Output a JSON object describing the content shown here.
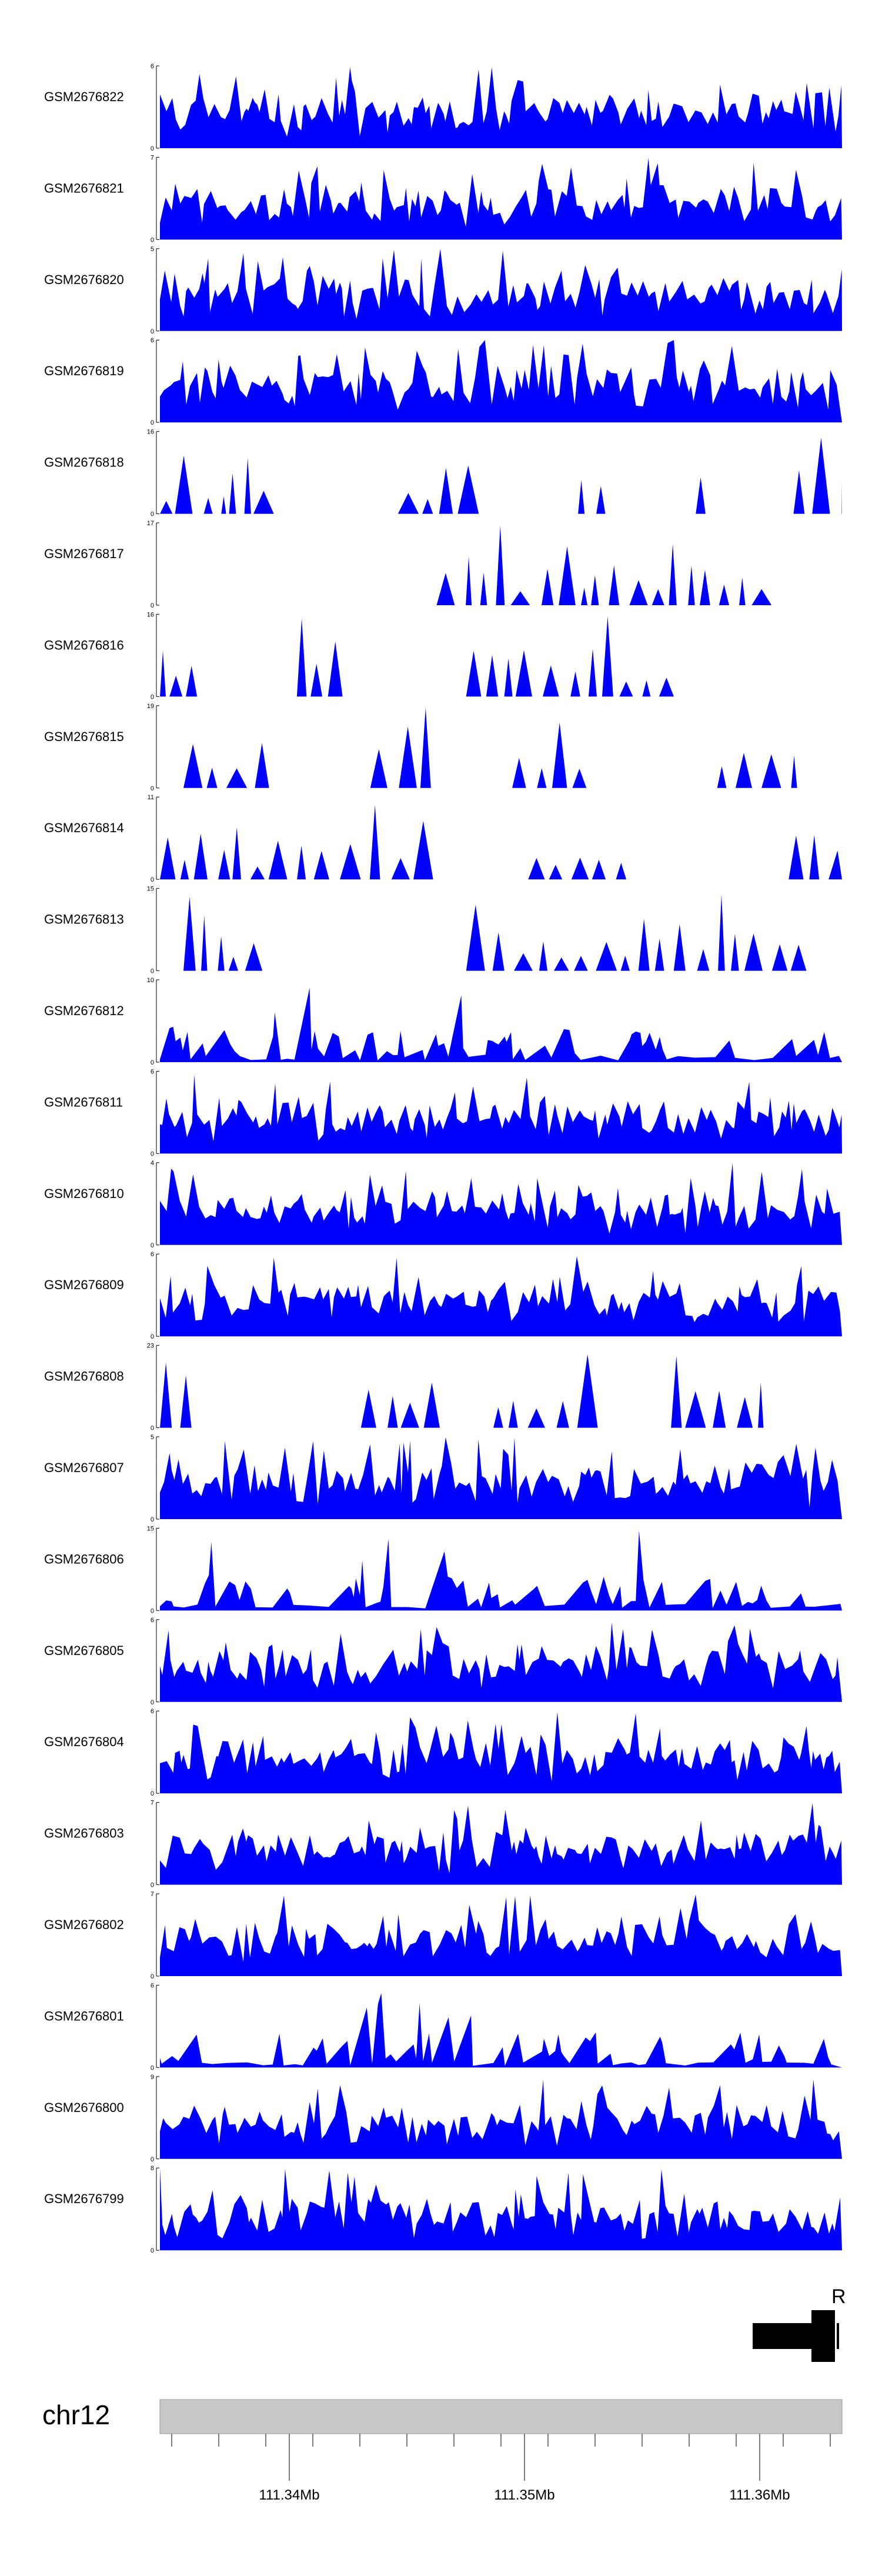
{
  "chart_data": {
    "type": "area",
    "title": "",
    "chromosome": "chr12",
    "x_range_mb": [
      111.3345,
      111.3635
    ],
    "x_axis_ticks": [
      {
        "value": 111.34,
        "label": "111.34Mb"
      },
      {
        "value": 111.35,
        "label": "111.35Mb"
      },
      {
        "value": 111.36,
        "label": "111.36Mb"
      }
    ],
    "fill_color": "#0000ff",
    "tracks": [
      {
        "name": "GSM2676822",
        "ymax": 6,
        "ymax_label": "6",
        "ymin_label": "0",
        "profile": "dense",
        "seed": 11
      },
      {
        "name": "GSM2676821",
        "ymax": 7,
        "ymax_label": "7",
        "ymin_label": "0",
        "profile": "dense",
        "seed": 12
      },
      {
        "name": "GSM2676820",
        "ymax": 5,
        "ymax_label": "5",
        "ymin_label": "0",
        "profile": "dense",
        "seed": 13
      },
      {
        "name": "GSM2676819",
        "ymax": 6,
        "ymax_label": "6",
        "ymin_label": "0",
        "profile": "dense",
        "seed": 14
      },
      {
        "name": "GSM2676818",
        "ymax": 16,
        "ymax_label": "16",
        "ymin_label": "0",
        "profile": "sparse",
        "seed": 15
      },
      {
        "name": "GSM2676817",
        "ymax": 17,
        "ymax_label": "17",
        "ymin_label": "0",
        "profile": "sparse",
        "seed": 16
      },
      {
        "name": "GSM2676816",
        "ymax": 16,
        "ymax_label": "16",
        "ymin_label": "0",
        "profile": "sparse",
        "seed": 17
      },
      {
        "name": "GSM2676815",
        "ymax": 19,
        "ymax_label": "19",
        "ymin_label": "0",
        "profile": "verysparse",
        "seed": 18
      },
      {
        "name": "GSM2676814",
        "ymax": 11,
        "ymax_label": "11",
        "ymin_label": "0",
        "profile": "sparse",
        "seed": 19
      },
      {
        "name": "GSM2676813",
        "ymax": 15,
        "ymax_label": "15",
        "ymin_label": "0",
        "profile": "verysparse",
        "seed": 20
      },
      {
        "name": "GSM2676812",
        "ymax": 10,
        "ymax_label": "10",
        "ymin_label": "0",
        "profile": "medium",
        "seed": 21
      },
      {
        "name": "GSM2676811",
        "ymax": 6,
        "ymax_label": "6",
        "ymin_label": "0",
        "profile": "dense",
        "seed": 22
      },
      {
        "name": "GSM2676810",
        "ymax": 4,
        "ymax_label": "4",
        "ymin_label": "0",
        "profile": "dense",
        "seed": 23
      },
      {
        "name": "GSM2676809",
        "ymax": 6,
        "ymax_label": "6",
        "ymin_label": "0",
        "profile": "dense",
        "seed": 24
      },
      {
        "name": "GSM2676808",
        "ymax": 23,
        "ymax_label": "23",
        "ymin_label": "0",
        "profile": "sparse",
        "seed": 25
      },
      {
        "name": "GSM2676807",
        "ymax": 5,
        "ymax_label": "5",
        "ymin_label": "0",
        "profile": "dense",
        "seed": 26
      },
      {
        "name": "GSM2676806",
        "ymax": 15,
        "ymax_label": "15",
        "ymin_label": "0",
        "profile": "medium",
        "seed": 27
      },
      {
        "name": "GSM2676805",
        "ymax": 6,
        "ymax_label": "6",
        "ymin_label": "0",
        "profile": "dense",
        "seed": 28
      },
      {
        "name": "GSM2676804",
        "ymax": 6,
        "ymax_label": "6",
        "ymin_label": "0",
        "profile": "dense",
        "seed": 29
      },
      {
        "name": "GSM2676803",
        "ymax": 7,
        "ymax_label": "7",
        "ymin_label": "0",
        "profile": "dense",
        "seed": 30
      },
      {
        "name": "GSM2676802",
        "ymax": 7,
        "ymax_label": "7",
        "ymin_label": "0",
        "profile": "dense",
        "seed": 31
      },
      {
        "name": "GSM2676801",
        "ymax": 6,
        "ymax_label": "6",
        "ymin_label": "0",
        "profile": "medium",
        "seed": 32
      },
      {
        "name": "GSM2676800",
        "ymax": 9,
        "ymax_label": "9",
        "ymin_label": "0",
        "profile": "dense",
        "seed": 33
      },
      {
        "name": "GSM2676799",
        "ymax": 8,
        "ymax_label": "8",
        "ymin_label": "0",
        "profile": "dense",
        "seed": 34
      }
    ],
    "gene_track": {
      "label": "R",
      "color": "#000000"
    },
    "ideogram_color": "#c8c8c8"
  }
}
